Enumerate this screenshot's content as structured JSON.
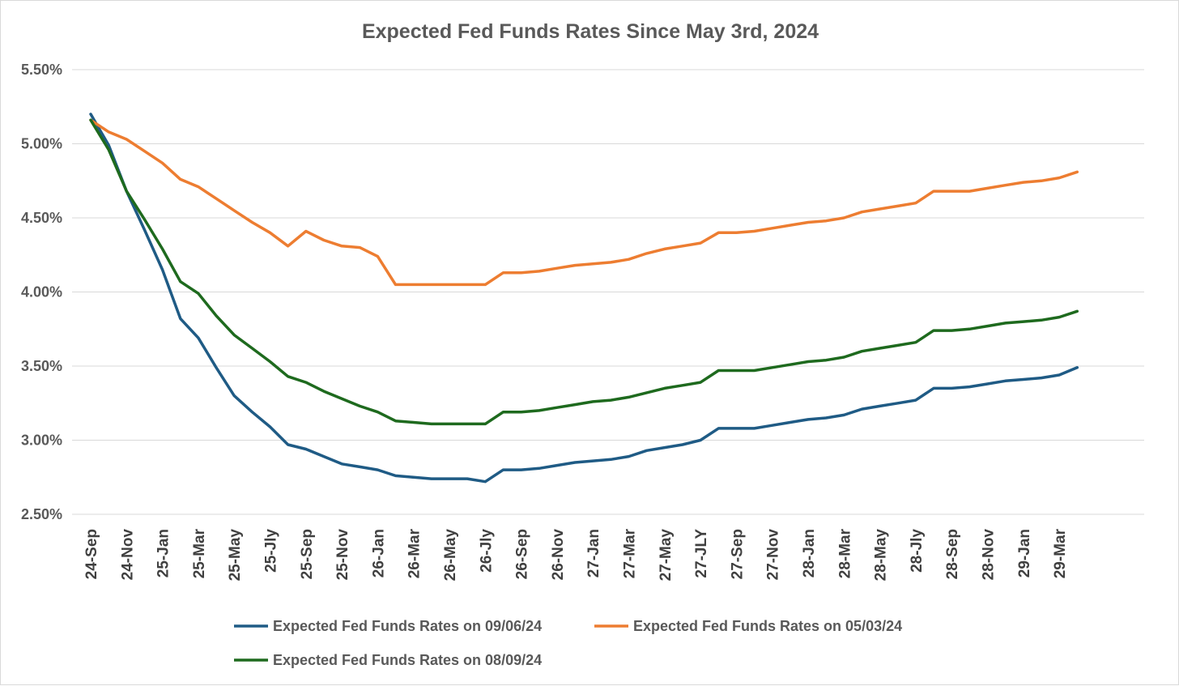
{
  "chart_data": {
    "type": "line",
    "title": "Expected Fed Funds Rates Since May 3rd, 2024",
    "xlabel": "",
    "ylabel": "",
    "ylim": [
      2.5,
      5.5
    ],
    "yticks": [
      "5.50%",
      "5.00%",
      "4.50%",
      "4.00%",
      "3.50%",
      "3.00%",
      "2.50%"
    ],
    "grid": true,
    "legend_position": "bottom",
    "categories": [
      "24-Sep",
      "24-Oct",
      "24-Nov",
      "24-Dec",
      "25-Jan",
      "25-Feb",
      "25-Mar",
      "25-Apr",
      "25-May",
      "25-Jun",
      "25-Jly",
      "25-Aug",
      "25-Sep",
      "25-Oct",
      "25-Nov",
      "25-Dec",
      "26-Jan",
      "26-Feb",
      "26-Mar",
      "26-Apr",
      "26-May",
      "26-Jun",
      "26-Jly",
      "26-Aug",
      "26-Sep",
      "26-Oct",
      "26-Nov",
      "26-Dec",
      "27-Jan",
      "27-Feb",
      "27-Mar",
      "27-Apr",
      "27-May",
      "27-Jun",
      "27-JLY",
      "27-Aug",
      "27-Sep",
      "27-Oct",
      "27-Nov",
      "27-Dec",
      "28-Jan",
      "28-Feb",
      "28-Mar",
      "28-Apr",
      "28-May",
      "28-Jun",
      "28-Jly",
      "28-Aug",
      "28-Sep",
      "28-Oct",
      "28-Nov",
      "28-Dec",
      "29-Jan",
      "29-Feb",
      "29-Mar",
      "29-Apr"
    ],
    "tick_labels": [
      "24-Sep",
      "24-Nov",
      "25-Jan",
      "25-Mar",
      "25-May",
      "25-Jly",
      "25-Sep",
      "25-Nov",
      "26-Jan",
      "26-Mar",
      "26-May",
      "26-Jly",
      "26-Sep",
      "26-Nov",
      "27-Jan",
      "27-Mar",
      "27-May",
      "27-JLY",
      "27-Sep",
      "27-Nov",
      "28-Jan",
      "28-Mar",
      "28-May",
      "28-Jly",
      "28-Sep",
      "28-Nov",
      "29-Jan",
      "29-Mar"
    ],
    "series": [
      {
        "name": "Expected Fed Funds Rates on 09/06/24",
        "color": "#1f5b85",
        "values": [
          5.2,
          4.99,
          4.68,
          4.42,
          4.15,
          3.82,
          3.69,
          3.49,
          3.3,
          3.19,
          3.09,
          2.97,
          2.94,
          2.89,
          2.84,
          2.82,
          2.8,
          2.76,
          2.75,
          2.74,
          2.74,
          2.74,
          2.72,
          2.8,
          2.8,
          2.81,
          2.83,
          2.85,
          2.86,
          2.87,
          2.89,
          2.93,
          2.95,
          2.97,
          3.0,
          3.08,
          3.08,
          3.08,
          3.1,
          3.12,
          3.14,
          3.15,
          3.17,
          3.21,
          3.23,
          3.25,
          3.27,
          3.35,
          3.35,
          3.36,
          3.38,
          3.4,
          3.41,
          3.42,
          3.44,
          3.49
        ]
      },
      {
        "name": "Expected Fed Funds Rates on 05/03/24",
        "color": "#ed7d31",
        "values": [
          5.16,
          5.08,
          5.03,
          4.95,
          4.87,
          4.76,
          4.71,
          4.63,
          4.55,
          4.47,
          4.4,
          4.31,
          4.41,
          4.35,
          4.31,
          4.3,
          4.24,
          4.05,
          4.05,
          4.05,
          4.05,
          4.05,
          4.05,
          4.13,
          4.13,
          4.14,
          4.16,
          4.18,
          4.19,
          4.2,
          4.22,
          4.26,
          4.29,
          4.31,
          4.33,
          4.4,
          4.4,
          4.41,
          4.43,
          4.45,
          4.47,
          4.48,
          4.5,
          4.54,
          4.56,
          4.58,
          4.6,
          4.68,
          4.68,
          4.68,
          4.7,
          4.72,
          4.74,
          4.75,
          4.77,
          4.81
        ]
      },
      {
        "name": "Expected Fed Funds Rates on 08/09/24",
        "color": "#1e6a1e",
        "values": [
          5.16,
          4.96,
          4.68,
          4.49,
          4.29,
          4.07,
          3.99,
          3.84,
          3.71,
          3.62,
          3.53,
          3.43,
          3.39,
          3.33,
          3.28,
          3.23,
          3.19,
          3.13,
          3.12,
          3.11,
          3.11,
          3.11,
          3.11,
          3.19,
          3.19,
          3.2,
          3.22,
          3.24,
          3.26,
          3.27,
          3.29,
          3.32,
          3.35,
          3.37,
          3.39,
          3.47,
          3.47,
          3.47,
          3.49,
          3.51,
          3.53,
          3.54,
          3.56,
          3.6,
          3.62,
          3.64,
          3.66,
          3.74,
          3.74,
          3.75,
          3.77,
          3.79,
          3.8,
          3.81,
          3.83,
          3.87
        ]
      }
    ]
  }
}
